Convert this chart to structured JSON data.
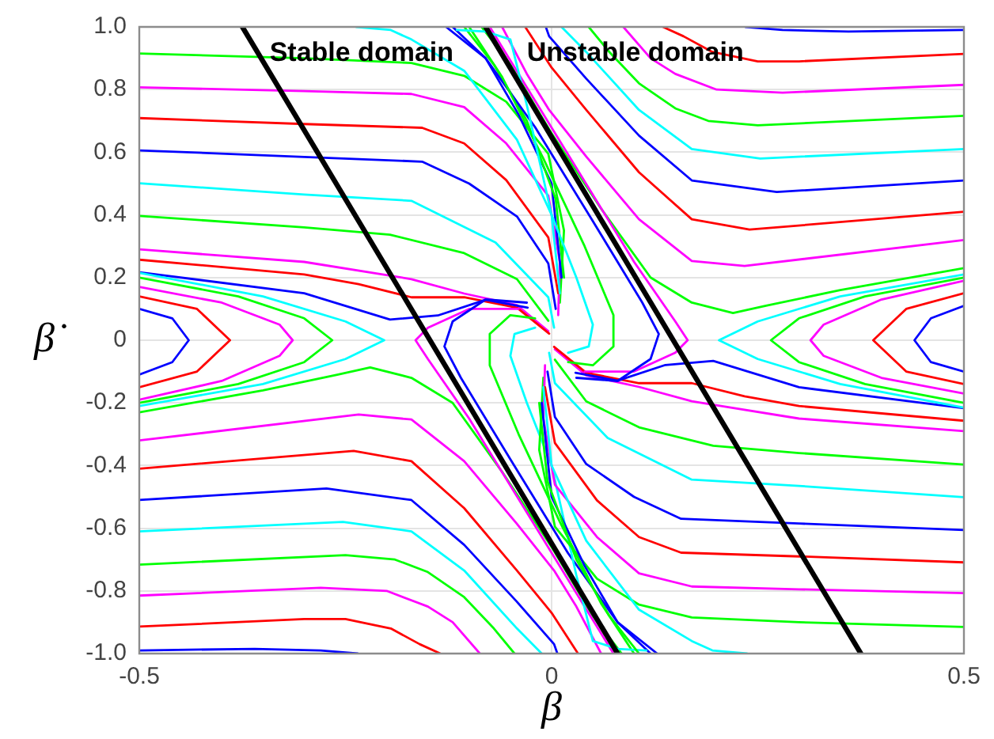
{
  "chart_data": {
    "type": "line",
    "xlabel": "β",
    "ylabel": "β̇",
    "marker": "none",
    "line_style": "solid",
    "grid": true,
    "legend": false,
    "xlim": [
      -0.5,
      0.5
    ],
    "xticks": [
      -0.5,
      0,
      0.5
    ],
    "ylim": [
      -1,
      1
    ],
    "yticks": [
      {
        "value": -1,
        "label": "-1.0"
      },
      -0.8,
      -0.6,
      -0.4,
      -0.2,
      0,
      0.2,
      0.4,
      0.6,
      0.8,
      {
        "value": 1,
        "label": "1.0"
      }
    ],
    "annotations": [
      "Stable domain",
      "Unstable domain"
    ],
    "series": [
      {
        "color": "#00ff00",
        "x": [
          -0.5,
          -0.3,
          -0.17,
          -0.106,
          -0.055,
          -0.004,
          0.015,
          0.01
        ],
        "values": [
          0.915,
          0.9,
          0.885,
          0.844,
          0.761,
          0.595,
          0.35,
          0.12
        ]
      },
      {
        "color": "#ff00ff",
        "x": [
          -0.5,
          -0.3,
          -0.17,
          -0.106,
          -0.055,
          -0.004,
          0.01,
          0.008
        ],
        "values": [
          0.807,
          0.795,
          0.786,
          0.744,
          0.628,
          0.461,
          0.25,
          0.08
        ]
      },
      {
        "color": "#ff0000",
        "x": [
          -0.5,
          -0.3,
          -0.157,
          -0.106,
          -0.055,
          -0.004,
          0.008
        ],
        "values": [
          0.709,
          0.69,
          0.678,
          0.628,
          0.511,
          0.328,
          0.15
        ]
      },
      {
        "color": "#0000ff",
        "x": [
          -0.5,
          -0.3,
          -0.157,
          -0.1,
          -0.042,
          -0.004,
          0.005
        ],
        "values": [
          0.606,
          0.585,
          0.57,
          0.5,
          0.395,
          0.245,
          0.1
        ]
      },
      {
        "color": "#00ffff",
        "x": [
          -0.5,
          -0.3,
          -0.17,
          -0.068,
          -0.004,
          0.003
        ],
        "values": [
          0.501,
          0.465,
          0.445,
          0.312,
          0.137,
          0.04
        ]
      },
      {
        "color": "#00ff00",
        "x": [
          -0.5,
          -0.3,
          -0.196,
          -0.106,
          -0.042,
          -0.004
        ],
        "values": [
          0.397,
          0.36,
          0.337,
          0.278,
          0.195,
          0.062
        ]
      },
      {
        "color": "#ff00ff",
        "x": [
          -0.5,
          -0.3,
          -0.17,
          -0.106,
          -0.042,
          -0.004
        ],
        "values": [
          0.29,
          0.25,
          0.195,
          0.149,
          0.112,
          0.029
        ]
      },
      {
        "color": "#ff0000",
        "x": [
          -0.5,
          -0.3,
          -0.234,
          -0.17,
          -0.106,
          -0.042,
          -0.003
        ],
        "values": [
          0.257,
          0.21,
          0.179,
          0.137,
          0.137,
          0.104,
          0.021
        ]
      },
      {
        "color": "#0000ff",
        "x": [
          -0.5,
          -0.3,
          -0.196,
          -0.138,
          -0.08,
          -0.029
        ],
        "values": [
          0.217,
          0.15,
          0.066,
          0.079,
          0.129,
          0.104
        ]
      },
      {
        "color": "#00ffff",
        "x": [
          -0.237,
          -0.195,
          -0.17,
          -0.106,
          -0.042,
          0.0,
          0.01
        ],
        "values": [
          1.0,
          0.99,
          0.96,
          0.86,
          0.64,
          0.4,
          0.15
        ]
      },
      {
        "color": "#0000ff",
        "x": [
          -0.128,
          -0.08,
          -0.04,
          0.0,
          0.012
        ],
        "values": [
          1.0,
          0.9,
          0.72,
          0.5,
          0.2
        ]
      },
      {
        "color": "#00ff00",
        "x": [
          -0.106,
          -0.07,
          -0.03,
          0.005,
          0.015
        ],
        "values": [
          1.0,
          0.88,
          0.7,
          0.45,
          0.2
        ]
      },
      {
        "color": "#0000ff",
        "x": [
          -0.5,
          -0.36,
          -0.28,
          -0.235
        ],
        "values": [
          -0.99,
          -0.985,
          -0.99,
          -1.0
        ]
      },
      {
        "color": "#ff0000",
        "x": [
          -0.5,
          -0.3,
          -0.25,
          -0.195,
          -0.16,
          -0.135
        ],
        "values": [
          -0.914,
          -0.89,
          -0.89,
          -0.92,
          -0.97,
          -1.0
        ]
      },
      {
        "color": "#ff00ff",
        "x": [
          -0.5,
          -0.28,
          -0.2,
          -0.15,
          -0.12,
          -0.087
        ],
        "values": [
          -0.815,
          -0.79,
          -0.8,
          -0.85,
          -0.9,
          -1.0
        ]
      },
      {
        "color": "#00ff00",
        "x": [
          -0.5,
          -0.25,
          -0.19,
          -0.15,
          -0.106,
          -0.07,
          -0.045
        ],
        "values": [
          -0.716,
          -0.686,
          -0.7,
          -0.74,
          -0.82,
          -0.92,
          -1.0
        ]
      },
      {
        "color": "#00ffff",
        "x": [
          -0.5,
          -0.253,
          -0.17,
          -0.106,
          -0.042,
          -0.012
        ],
        "values": [
          -0.61,
          -0.58,
          -0.61,
          -0.735,
          -0.92,
          -1.0
        ]
      },
      {
        "color": "#0000ff",
        "x": [
          -0.5,
          -0.273,
          -0.17,
          -0.106,
          -0.042,
          0.003,
          0.007
        ],
        "values": [
          -0.51,
          -0.473,
          -0.51,
          -0.653,
          -0.835,
          -0.97,
          -1.0
        ]
      },
      {
        "color": "#ff0000",
        "x": [
          -0.5,
          -0.24,
          -0.17,
          -0.106,
          -0.042,
          0.0,
          0.032
        ],
        "values": [
          -0.41,
          -0.353,
          -0.386,
          -0.536,
          -0.735,
          -0.87,
          -1.0
        ]
      },
      {
        "color": "#ff00ff",
        "x": [
          -0.5,
          -0.234,
          -0.17,
          -0.106,
          -0.042,
          0.003,
          0.03,
          0.06
        ],
        "values": [
          -0.32,
          -0.237,
          -0.253,
          -0.386,
          -0.586,
          -0.735,
          -0.85,
          -1.0
        ]
      },
      {
        "color": "#00ff00",
        "x": [
          -0.5,
          -0.35,
          -0.26,
          -0.22,
          -0.17,
          -0.12,
          -0.06,
          0.0,
          0.05,
          0.085
        ],
        "values": [
          -0.23,
          -0.16,
          -0.11,
          -0.087,
          -0.12,
          -0.2,
          -0.42,
          -0.66,
          -0.88,
          -1.0
        ]
      },
      {
        "color": "#0000ff",
        "x": [
          -0.5,
          -0.46,
          -0.44,
          -0.46,
          -0.5
        ],
        "values": [
          0.1,
          0.07,
          0.0,
          -0.07,
          -0.11
        ]
      },
      {
        "color": "#ff0000",
        "x": [
          -0.5,
          -0.43,
          -0.39,
          -0.43,
          -0.5
        ],
        "values": [
          0.14,
          0.1,
          0.0,
          -0.1,
          -0.15
        ]
      },
      {
        "color": "#ff00ff",
        "x": [
          -0.5,
          -0.4,
          -0.33,
          -0.314,
          -0.33,
          -0.4,
          -0.5
        ],
        "values": [
          0.17,
          0.12,
          0.05,
          0.0,
          -0.05,
          -0.13,
          -0.19
        ]
      },
      {
        "color": "#00ff00",
        "x": [
          -0.5,
          -0.38,
          -0.3,
          -0.266,
          -0.3,
          -0.38,
          -0.5
        ],
        "values": [
          0.2,
          0.14,
          0.07,
          0.0,
          -0.07,
          -0.14,
          -0.2
        ]
      },
      {
        "color": "#00ffff",
        "x": [
          -0.5,
          -0.35,
          -0.25,
          -0.203,
          -0.25,
          -0.35,
          -0.5
        ],
        "values": [
          0.215,
          0.14,
          0.06,
          0.0,
          -0.06,
          -0.14,
          -0.21
        ]
      },
      {
        "color": "#ff00ff",
        "x": [
          -0.04,
          -0.1,
          -0.15,
          -0.165,
          -0.15,
          -0.1,
          -0.03,
          0.04,
          0.075
        ],
        "values": [
          0.1,
          0.1,
          0.04,
          0.0,
          -0.06,
          -0.25,
          -0.55,
          -0.85,
          -1.0
        ]
      },
      {
        "color": "#0000ff",
        "x": [
          -0.03,
          -0.08,
          -0.12,
          -0.13,
          -0.11,
          -0.05,
          0.02,
          0.08,
          0.12
        ],
        "values": [
          0.12,
          0.13,
          0.06,
          -0.02,
          -0.12,
          -0.38,
          -0.68,
          -0.9,
          -1.0
        ]
      },
      {
        "color": "#00ff00",
        "x": [
          -0.02,
          -0.05,
          -0.075,
          -0.075,
          -0.04,
          0.01,
          0.06,
          0.1
        ],
        "values": [
          0.07,
          0.08,
          0.02,
          -0.08,
          -0.3,
          -0.58,
          -0.84,
          -1.0
        ]
      },
      {
        "color": "#00ffff",
        "x": [
          -0.02,
          -0.045,
          -0.05,
          -0.03,
          0.0,
          0.03,
          0.05,
          0.08,
          0.115
        ],
        "values": [
          0.04,
          0.02,
          -0.05,
          -0.2,
          -0.4,
          -0.75,
          -0.96,
          -0.985,
          -0.99
        ]
      },
      {
        "color": "#00ff00",
        "x": [
          0.5,
          0.3,
          0.17,
          0.106,
          0.055,
          0.004,
          -0.015,
          -0.01
        ],
        "values": [
          -0.915,
          -0.9,
          -0.885,
          -0.844,
          -0.761,
          -0.595,
          -0.35,
          -0.12
        ]
      },
      {
        "color": "#ff00ff",
        "x": [
          0.5,
          0.3,
          0.17,
          0.106,
          0.055,
          0.004,
          -0.01,
          -0.008
        ],
        "values": [
          -0.807,
          -0.795,
          -0.786,
          -0.744,
          -0.628,
          -0.461,
          -0.25,
          -0.08
        ]
      },
      {
        "color": "#ff0000",
        "x": [
          0.5,
          0.3,
          0.157,
          0.106,
          0.055,
          0.004,
          -0.008
        ],
        "values": [
          -0.709,
          -0.69,
          -0.678,
          -0.628,
          -0.511,
          -0.328,
          -0.15
        ]
      },
      {
        "color": "#0000ff",
        "x": [
          0.5,
          0.3,
          0.157,
          0.1,
          0.042,
          0.004,
          -0.005
        ],
        "values": [
          -0.606,
          -0.585,
          -0.57,
          -0.5,
          -0.395,
          -0.245,
          -0.1
        ]
      },
      {
        "color": "#00ffff",
        "x": [
          0.5,
          0.3,
          0.17,
          0.068,
          0.004,
          -0.003
        ],
        "values": [
          -0.501,
          -0.465,
          -0.445,
          -0.312,
          -0.137,
          -0.04
        ]
      },
      {
        "color": "#00ff00",
        "x": [
          0.5,
          0.3,
          0.196,
          0.106,
          0.042,
          0.004
        ],
        "values": [
          -0.397,
          -0.36,
          -0.337,
          -0.278,
          -0.195,
          -0.062
        ]
      },
      {
        "color": "#ff00ff",
        "x": [
          0.5,
          0.3,
          0.17,
          0.106,
          0.042,
          0.004
        ],
        "values": [
          -0.29,
          -0.25,
          -0.195,
          -0.149,
          -0.112,
          -0.029
        ]
      },
      {
        "color": "#ff0000",
        "x": [
          0.5,
          0.3,
          0.234,
          0.17,
          0.106,
          0.042,
          0.003
        ],
        "values": [
          -0.257,
          -0.21,
          -0.179,
          -0.137,
          -0.137,
          -0.104,
          -0.021
        ]
      },
      {
        "color": "#0000ff",
        "x": [
          0.5,
          0.3,
          0.196,
          0.138,
          0.08,
          0.029
        ],
        "values": [
          -0.217,
          -0.15,
          -0.066,
          -0.079,
          -0.129,
          -0.104
        ]
      },
      {
        "color": "#00ffff",
        "x": [
          0.237,
          0.195,
          0.17,
          0.106,
          0.042,
          0.0,
          -0.01
        ],
        "values": [
          -1.0,
          -0.99,
          -0.96,
          -0.86,
          -0.64,
          -0.4,
          -0.15
        ]
      },
      {
        "color": "#0000ff",
        "x": [
          0.128,
          0.08,
          0.04,
          0.0,
          -0.012
        ],
        "values": [
          -1.0,
          -0.9,
          -0.72,
          -0.5,
          -0.2
        ]
      },
      {
        "color": "#00ff00",
        "x": [
          0.106,
          0.07,
          0.03,
          -0.005,
          -0.015
        ],
        "values": [
          -1.0,
          -0.88,
          -0.7,
          -0.45,
          -0.2
        ]
      },
      {
        "color": "#0000ff",
        "x": [
          0.5,
          0.36,
          0.28,
          0.235
        ],
        "values": [
          0.99,
          0.985,
          0.99,
          1.0
        ]
      },
      {
        "color": "#ff0000",
        "x": [
          0.5,
          0.3,
          0.25,
          0.195,
          0.16,
          0.135
        ],
        "values": [
          0.914,
          0.89,
          0.89,
          0.92,
          0.97,
          1.0
        ]
      },
      {
        "color": "#ff00ff",
        "x": [
          0.5,
          0.28,
          0.2,
          0.15,
          0.12,
          0.087
        ],
        "values": [
          0.815,
          0.79,
          0.8,
          0.85,
          0.9,
          1.0
        ]
      },
      {
        "color": "#00ff00",
        "x": [
          0.5,
          0.25,
          0.19,
          0.15,
          0.106,
          0.07,
          0.045
        ],
        "values": [
          0.716,
          0.686,
          0.7,
          0.74,
          0.82,
          0.92,
          1.0
        ]
      },
      {
        "color": "#00ffff",
        "x": [
          0.5,
          0.253,
          0.17,
          0.106,
          0.042,
          0.012
        ],
        "values": [
          0.61,
          0.58,
          0.61,
          0.735,
          0.92,
          1.0
        ]
      },
      {
        "color": "#0000ff",
        "x": [
          0.5,
          0.273,
          0.17,
          0.106,
          0.042,
          -0.003,
          -0.007
        ],
        "values": [
          0.51,
          0.473,
          0.51,
          0.653,
          0.835,
          0.97,
          1.0
        ]
      },
      {
        "color": "#ff0000",
        "x": [
          0.5,
          0.24,
          0.17,
          0.106,
          0.042,
          0.0,
          -0.032
        ],
        "values": [
          0.41,
          0.353,
          0.386,
          0.536,
          0.735,
          0.87,
          1.0
        ]
      },
      {
        "color": "#ff00ff",
        "x": [
          0.5,
          0.234,
          0.17,
          0.106,
          0.042,
          -0.003,
          -0.03,
          -0.06
        ],
        "values": [
          0.32,
          0.237,
          0.253,
          0.386,
          0.586,
          0.735,
          0.85,
          1.0
        ]
      },
      {
        "color": "#00ff00",
        "x": [
          0.5,
          0.35,
          0.26,
          0.22,
          0.17,
          0.12,
          0.06,
          0.0,
          -0.05,
          -0.085
        ],
        "values": [
          0.23,
          0.16,
          0.11,
          0.087,
          0.12,
          0.2,
          0.42,
          0.66,
          0.88,
          1.0
        ]
      },
      {
        "color": "#0000ff",
        "x": [
          0.5,
          0.46,
          0.44,
          0.46,
          0.5
        ],
        "values": [
          -0.1,
          -0.07,
          0.0,
          0.07,
          0.11
        ]
      },
      {
        "color": "#ff0000",
        "x": [
          0.5,
          0.43,
          0.39,
          0.43,
          0.5
        ],
        "values": [
          -0.14,
          -0.1,
          0.0,
          0.1,
          0.15
        ]
      },
      {
        "color": "#ff00ff",
        "x": [
          0.5,
          0.4,
          0.33,
          0.314,
          0.33,
          0.4,
          0.5
        ],
        "values": [
          -0.17,
          -0.12,
          -0.05,
          0.0,
          0.05,
          0.13,
          0.19
        ]
      },
      {
        "color": "#00ff00",
        "x": [
          0.5,
          0.38,
          0.3,
          0.266,
          0.3,
          0.38,
          0.5
        ],
        "values": [
          -0.2,
          -0.14,
          -0.07,
          0.0,
          0.07,
          0.14,
          0.2
        ]
      },
      {
        "color": "#00ffff",
        "x": [
          0.5,
          0.35,
          0.25,
          0.203,
          0.25,
          0.35,
          0.5
        ],
        "values": [
          -0.215,
          -0.14,
          -0.06,
          0.0,
          0.06,
          0.14,
          0.21
        ]
      },
      {
        "color": "#ff00ff",
        "x": [
          0.04,
          0.1,
          0.15,
          0.165,
          0.15,
          0.1,
          0.03,
          -0.04,
          -0.075
        ],
        "values": [
          -0.1,
          -0.1,
          -0.04,
          0.0,
          0.06,
          0.25,
          0.55,
          0.85,
          1.0
        ]
      },
      {
        "color": "#0000ff",
        "x": [
          0.03,
          0.08,
          0.12,
          0.13,
          0.11,
          0.05,
          -0.02,
          -0.08,
          -0.12
        ],
        "values": [
          -0.12,
          -0.13,
          -0.06,
          0.02,
          0.12,
          0.38,
          0.68,
          0.9,
          1.0
        ]
      },
      {
        "color": "#00ff00",
        "x": [
          0.02,
          0.05,
          0.075,
          0.075,
          0.04,
          -0.01,
          -0.06,
          -0.1
        ],
        "values": [
          -0.07,
          -0.08,
          -0.02,
          0.08,
          0.3,
          0.58,
          0.84,
          1.0
        ]
      },
      {
        "color": "#00ffff",
        "x": [
          0.02,
          0.045,
          0.05,
          0.03,
          0.0,
          -0.03,
          -0.05,
          -0.08,
          -0.115
        ],
        "values": [
          -0.04,
          -0.02,
          0.05,
          0.2,
          0.4,
          0.75,
          0.96,
          0.985,
          0.99
        ]
      },
      {
        "color": "#000000",
        "x": [
          -0.375,
          0.08
        ],
        "values": [
          1.0,
          -1.0
        ]
      },
      {
        "color": "#000000",
        "x": [
          -0.08,
          0.375
        ],
        "values": [
          1.0,
          -1.0
        ]
      }
    ]
  }
}
